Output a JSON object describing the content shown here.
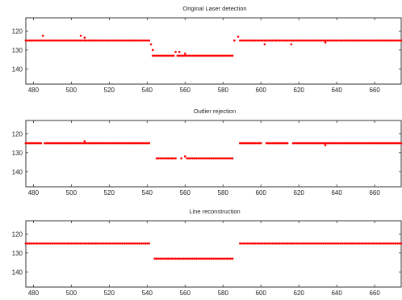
{
  "figure": {
    "marker_color": "#ff0000",
    "axes_color": "#333333"
  },
  "chart_data": [
    {
      "type": "scatter",
      "title": "Original Laser detection",
      "xlim": [
        476,
        674
      ],
      "ylim": [
        113,
        148
      ],
      "y_inverted": true,
      "xticks": [
        "480",
        "500",
        "520",
        "540",
        "560",
        "580",
        "600",
        "620",
        "640",
        "660"
      ],
      "yticks": [
        "120",
        "130",
        "140"
      ],
      "segments": [
        {
          "x_start": 476,
          "x_end": 541,
          "y": 125
        },
        {
          "x_start": 543,
          "x_end": 554,
          "y": 133
        },
        {
          "x_start": 556,
          "x_end": 585,
          "y": 133
        },
        {
          "x_start": 589,
          "x_end": 674,
          "y": 125
        }
      ],
      "points": [
        {
          "x": 485,
          "y": 122.5
        },
        {
          "x": 505,
          "y": 122.5
        },
        {
          "x": 507,
          "y": 123.5
        },
        {
          "x": 542,
          "y": 127
        },
        {
          "x": 543,
          "y": 130
        },
        {
          "x": 555,
          "y": 131
        },
        {
          "x": 557,
          "y": 131
        },
        {
          "x": 558,
          "y": 133
        },
        {
          "x": 560,
          "y": 132
        },
        {
          "x": 586,
          "y": 125
        },
        {
          "x": 588,
          "y": 123
        },
        {
          "x": 602,
          "y": 127
        },
        {
          "x": 616,
          "y": 127
        },
        {
          "x": 634,
          "y": 126
        }
      ]
    },
    {
      "type": "scatter",
      "title": "Outlier rejection",
      "xlim": [
        476,
        674
      ],
      "ylim": [
        113,
        148
      ],
      "y_inverted": true,
      "xticks": [
        "480",
        "500",
        "520",
        "540",
        "560",
        "580",
        "600",
        "620",
        "640",
        "660"
      ],
      "yticks": [
        "120",
        "130",
        "140"
      ],
      "segments": [
        {
          "x_start": 476,
          "x_end": 484,
          "y": 125
        },
        {
          "x_start": 486,
          "x_end": 541,
          "y": 125
        },
        {
          "x_start": 545,
          "x_end": 555,
          "y": 133
        },
        {
          "x_start": 561,
          "x_end": 585,
          "y": 133
        },
        {
          "x_start": 589,
          "x_end": 600,
          "y": 125
        },
        {
          "x_start": 603,
          "x_end": 614,
          "y": 125
        },
        {
          "x_start": 617,
          "x_end": 674,
          "y": 125
        }
      ],
      "points": [
        {
          "x": 507,
          "y": 124
        },
        {
          "x": 558,
          "y": 133
        },
        {
          "x": 560,
          "y": 132
        },
        {
          "x": 634,
          "y": 126
        }
      ]
    },
    {
      "type": "line",
      "title": "Line reconstruction",
      "xlim": [
        476,
        674
      ],
      "ylim": [
        113,
        148
      ],
      "y_inverted": true,
      "xticks": [
        "480",
        "500",
        "520",
        "540",
        "560",
        "580",
        "600",
        "620",
        "640",
        "660"
      ],
      "yticks": [
        "120",
        "130",
        "140"
      ],
      "segments": [
        {
          "x_start": 476,
          "x_end": 541,
          "y": 125
        },
        {
          "x_start": 544,
          "x_end": 585,
          "y": 133
        },
        {
          "x_start": 589,
          "x_end": 674,
          "y": 125
        }
      ],
      "points": []
    }
  ]
}
